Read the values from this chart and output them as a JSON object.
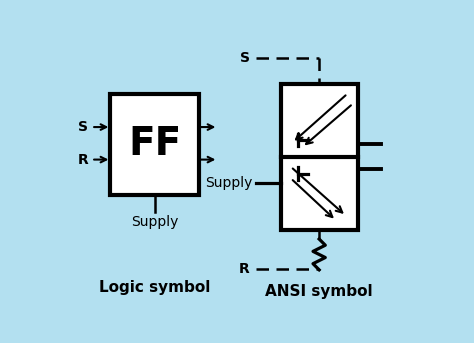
{
  "bg_color": "#b3e0f0",
  "box_color": "#000000",
  "title": "Logic symbol",
  "title2": "ANSI symbol",
  "ff_text": "FF",
  "supply_text": "Supply",
  "supply_text2": "Supply",
  "S_label": "S",
  "R_label": "R",
  "S_label2": "S",
  "R_label2": "R",
  "title_fontsize": 11,
  "label_fontsize": 10,
  "ff_fontsize": 28,
  "lw_thick": 3.0,
  "lw_thin": 1.8,
  "lw_arrow": 1.5
}
